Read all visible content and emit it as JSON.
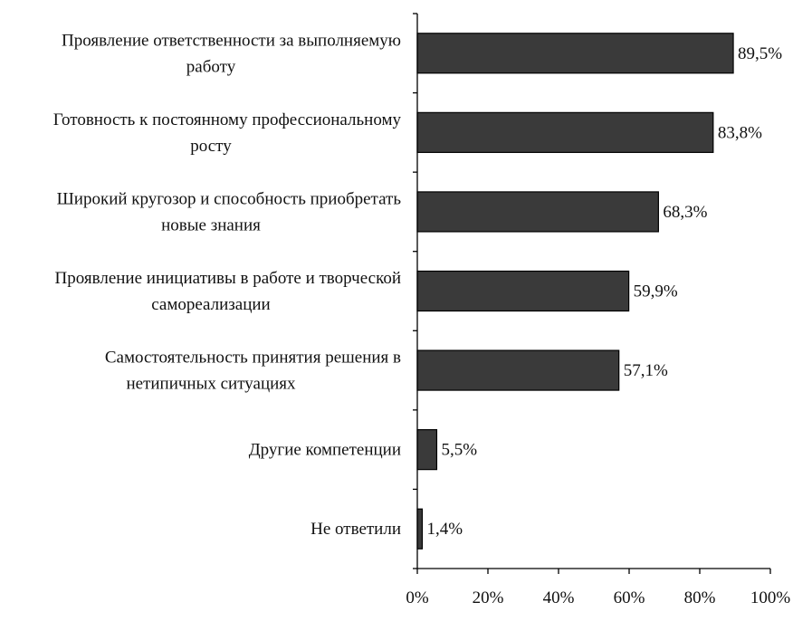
{
  "chart_data": {
    "type": "bar",
    "orientation": "horizontal",
    "categories": [
      [
        "Проявление ответственности за выполняемую",
        "работу"
      ],
      [
        "Готовность к постоянному профессиональному",
        "росту"
      ],
      [
        "Широкий кругозор и способность приобретать",
        "новые знания"
      ],
      [
        "Проявление инициативы в работе и творческой",
        "самореализации"
      ],
      [
        "Самостоятельность принятия решения в",
        "нетипичных ситуациях"
      ],
      [
        "Другие компетенции"
      ],
      [
        "Не ответили"
      ]
    ],
    "values": [
      89.5,
      83.8,
      68.3,
      59.9,
      57.1,
      5.5,
      1.4
    ],
    "value_labels": [
      "89,5%",
      "83,8%",
      "68,3%",
      "59,9%",
      "57,1%",
      "5,5%",
      "1,4%"
    ],
    "x_ticks": [
      0,
      20,
      40,
      60,
      80,
      100
    ],
    "x_tick_labels": [
      "0%",
      "20%",
      "40%",
      "60%",
      "80%",
      "100%"
    ],
    "xlim": [
      0,
      100
    ],
    "grid": false,
    "legend": "none",
    "bar_color": "#3a3a3a",
    "title": "",
    "xlabel": "",
    "ylabel": ""
  }
}
